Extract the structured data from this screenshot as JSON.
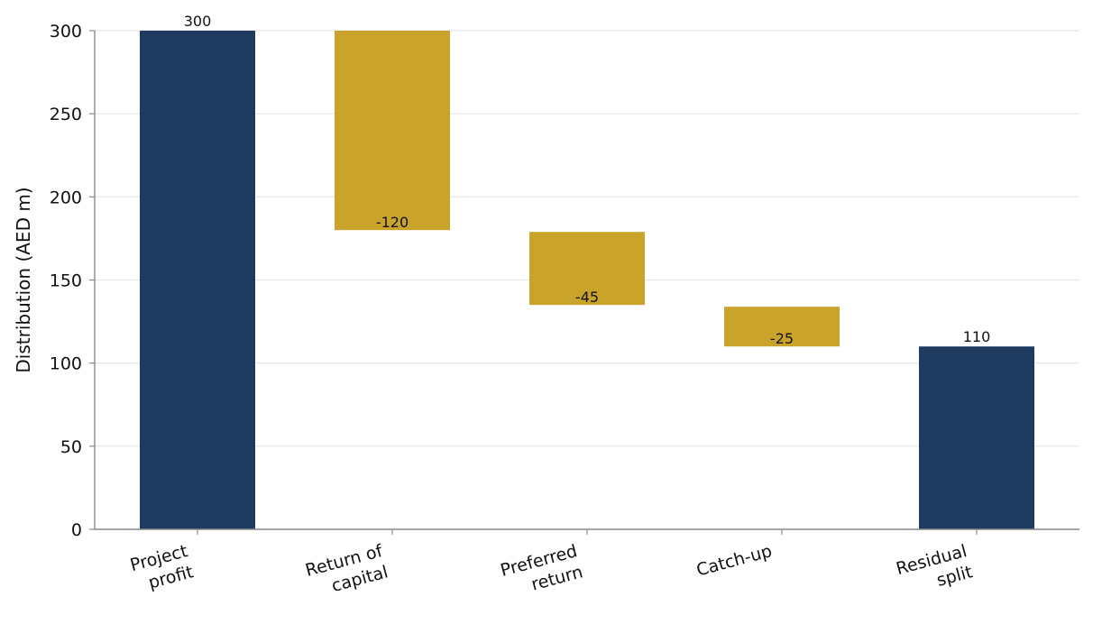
{
  "chart_data": {
    "type": "bar",
    "subtype": "waterfall",
    "categories": [
      [
        "Project",
        "profit"
      ],
      [
        "Return of",
        "capital"
      ],
      [
        "Preferred",
        "return"
      ],
      [
        "Catch-up"
      ],
      [
        "Residual",
        "split"
      ]
    ],
    "bars": [
      {
        "kind": "total",
        "start": 0,
        "end": 300,
        "label": "300"
      },
      {
        "kind": "delta",
        "start": 300,
        "end": 180,
        "label": "-120"
      },
      {
        "kind": "delta",
        "start": 180,
        "end": 135,
        "label": "-45"
      },
      {
        "kind": "delta",
        "start": 135,
        "end": 110,
        "label": "-25"
      },
      {
        "kind": "total",
        "start": 0,
        "end": 110,
        "label": "110"
      }
    ],
    "title": "",
    "xlabel": "",
    "ylabel": "Distribution (AED m)",
    "ylim": [
      0,
      300
    ],
    "yticks": [
      0,
      50,
      100,
      150,
      200,
      250,
      300
    ],
    "grid": "horizontal",
    "colors": {
      "total": "#1f3a5f",
      "delta": "#c9a32a",
      "grid": "#e3e6ee",
      "axis": "#888888"
    }
  }
}
